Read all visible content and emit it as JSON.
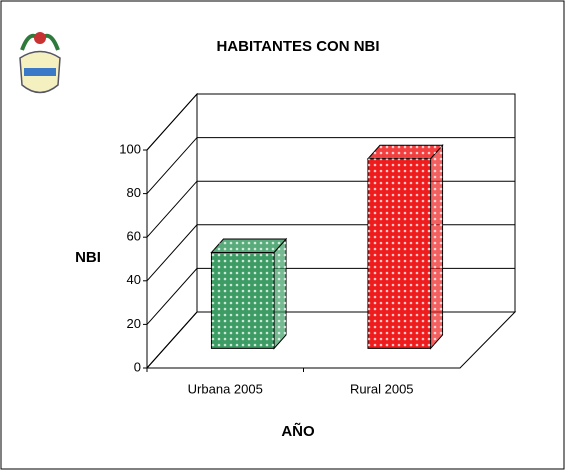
{
  "chart_data": {
    "type": "bar3d",
    "title": "HABITANTES CON NBI",
    "y_label": "NBI",
    "x_label": "AÑO",
    "categories": [
      "Urbana 2005",
      "Rural 2005"
    ],
    "values": [
      44,
      87
    ],
    "colors": [
      "#3c9c64",
      "#ee1c1c"
    ],
    "ylim": [
      0,
      100
    ],
    "yticks": [
      0,
      20,
      40,
      60,
      80,
      100
    ],
    "grid": true
  }
}
